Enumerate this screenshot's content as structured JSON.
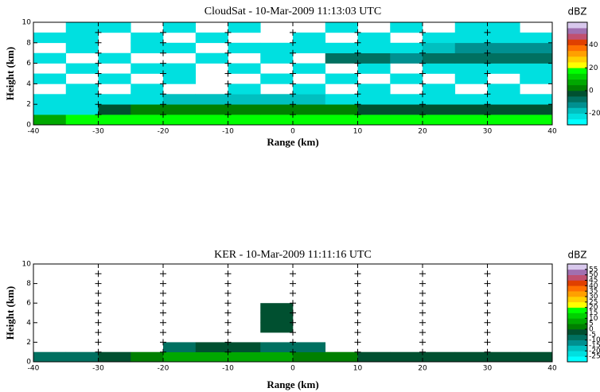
{
  "chart_data": [
    {
      "type": "heatmap",
      "title": "CloudSat  -  10-Mar-2009 11:13:03 UTC",
      "x_label": "Range (km)",
      "y_label": "Height (km)",
      "xbins": [
        -40,
        -35,
        -30,
        -25,
        -20,
        -15,
        -10,
        -5,
        0,
        5,
        10,
        15,
        20,
        25,
        30,
        35,
        40
      ],
      "ybins": [
        0,
        1,
        2,
        3,
        4,
        5,
        6,
        7,
        8,
        9,
        10
      ],
      "values": [
        [
          5,
          15,
          15,
          15,
          15,
          15,
          15,
          15,
          15,
          15,
          15,
          15,
          15,
          15,
          15,
          15
        ],
        [
          -22,
          -22,
          -5,
          0,
          2,
          4,
          3,
          2,
          0,
          0,
          -2,
          -2,
          -3,
          -3,
          -5,
          -5
        ],
        [
          -22,
          -22,
          -22,
          -22,
          -20,
          -20,
          -20,
          -20,
          -20,
          -22,
          -22,
          -22,
          -22,
          -22,
          -22,
          -22
        ],
        [
          null,
          -25,
          null,
          -25,
          null,
          null,
          -25,
          null,
          -25,
          null,
          -25,
          null,
          -25,
          null,
          -25,
          null
        ],
        [
          -25,
          null,
          -25,
          null,
          -25,
          null,
          null,
          -25,
          null,
          -25,
          null,
          -25,
          null,
          -25,
          null,
          -25
        ],
        [
          null,
          -25,
          null,
          -25,
          -25,
          null,
          -25,
          null,
          -25,
          null,
          -25,
          null,
          -25,
          -25,
          -25,
          -22
        ],
        [
          -25,
          null,
          -25,
          null,
          null,
          -25,
          null,
          -25,
          null,
          -10,
          -10,
          -12,
          -10,
          -10,
          -8,
          -8
        ],
        [
          null,
          -25,
          null,
          -25,
          -25,
          null,
          -25,
          -25,
          -25,
          -22,
          -22,
          -22,
          -18,
          -15,
          -12,
          -12
        ],
        [
          -25,
          -25,
          null,
          -25,
          null,
          -25,
          null,
          null,
          -25,
          null,
          -25,
          null,
          -25,
          -22,
          -22,
          -22
        ],
        [
          null,
          -25,
          -25,
          null,
          -25,
          null,
          -25,
          null,
          null,
          -25,
          null,
          -25,
          null,
          -25,
          -25,
          null
        ]
      ],
      "xlim": [
        -40,
        40
      ],
      "xticks": [
        -40,
        -30,
        -20,
        -10,
        0,
        10,
        20,
        30,
        40
      ],
      "ylim": [
        0,
        10
      ],
      "yticks": [
        0,
        2,
        4,
        6,
        8,
        10
      ],
      "colorbar": {
        "label": "dBZ",
        "lim": [
          -30,
          60
        ],
        "ticks": [
          -20,
          0,
          20,
          40
        ],
        "colors": [
          "#00ffff",
          "#00e0e0",
          "#00c0c0",
          "#009090",
          "#007060",
          "#005030",
          "#008000",
          "#00a800",
          "#00d000",
          "#00ff00",
          "#ffff00",
          "#ffd000",
          "#ffa000",
          "#ff7000",
          "#e04000",
          "#c05070",
          "#a070b0",
          "#d8c8ec"
        ]
      }
    },
    {
      "type": "heatmap",
      "title": "KER  -  10-Mar-2009 11:11:16 UTC",
      "x_label": "Range (km)",
      "y_label": "Height (km)",
      "xbins": [
        -40,
        -35,
        -30,
        -25,
        -20,
        -15,
        -10,
        -5,
        0,
        5,
        10,
        15,
        20,
        25,
        30,
        35,
        40
      ],
      "ybins": [
        0,
        1,
        2,
        3,
        4,
        5,
        6,
        7,
        8,
        9,
        10
      ],
      "values": [
        [
          -10,
          -10,
          -5,
          2,
          5,
          8,
          8,
          5,
          3,
          0,
          -2,
          -2,
          -3,
          -3,
          -5,
          -5
        ],
        [
          null,
          null,
          null,
          null,
          -8,
          -5,
          -5,
          -8,
          -10,
          null,
          null,
          null,
          null,
          null,
          null,
          null
        ],
        [
          null,
          null,
          null,
          null,
          null,
          null,
          null,
          null,
          null,
          null,
          null,
          null,
          null,
          null,
          null,
          null
        ],
        [
          null,
          null,
          null,
          null,
          null,
          null,
          null,
          -5,
          null,
          null,
          null,
          null,
          null,
          null,
          null,
          null
        ],
        [
          null,
          null,
          null,
          null,
          null,
          null,
          null,
          -5,
          null,
          null,
          null,
          null,
          null,
          null,
          null,
          null
        ],
        [
          null,
          null,
          null,
          null,
          null,
          null,
          null,
          -5,
          null,
          null,
          null,
          null,
          null,
          null,
          null,
          null
        ],
        [
          null,
          null,
          null,
          null,
          null,
          null,
          null,
          null,
          null,
          null,
          null,
          null,
          null,
          null,
          null,
          null
        ],
        [
          null,
          null,
          null,
          null,
          null,
          null,
          null,
          null,
          null,
          null,
          null,
          null,
          null,
          null,
          null,
          null
        ],
        [
          null,
          null,
          null,
          null,
          null,
          null,
          null,
          null,
          null,
          null,
          null,
          null,
          null,
          null,
          null,
          null
        ],
        [
          null,
          null,
          null,
          null,
          null,
          null,
          null,
          null,
          null,
          null,
          null,
          null,
          null,
          null,
          null,
          null
        ]
      ],
      "xlim": [
        -40,
        40
      ],
      "xticks": [
        -40,
        -30,
        -20,
        -10,
        0,
        10,
        20,
        30,
        40
      ],
      "ylim": [
        0,
        10
      ],
      "yticks": [
        0,
        2,
        4,
        6,
        8,
        10
      ],
      "colorbar": {
        "label": "dBZ",
        "lim": [
          -30,
          60
        ],
        "ticks": [
          55,
          50,
          45,
          40,
          35,
          30,
          25,
          20,
          15,
          10,
          5,
          0,
          -5,
          -10,
          -15,
          -20,
          -25
        ],
        "colors": [
          "#00ffff",
          "#00e0e0",
          "#00c0c0",
          "#009090",
          "#007060",
          "#005030",
          "#008000",
          "#00a800",
          "#00d000",
          "#00ff00",
          "#ffff00",
          "#ffd000",
          "#ffa000",
          "#ff7000",
          "#e04000",
          "#c05070",
          "#a070b0",
          "#d8c8ec"
        ]
      }
    }
  ]
}
